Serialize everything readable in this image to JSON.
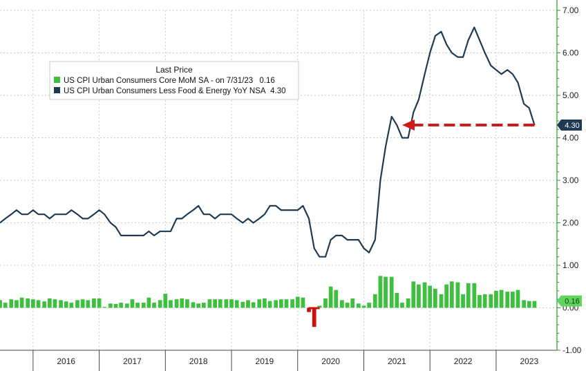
{
  "chart_data": {
    "type": "bar+line",
    "legend": {
      "title": "Last Price",
      "placement": "top-left",
      "entries": [
        {
          "label": "US CPI Urban Consumers Core MoM SA -  on 7/31/23",
          "value": "0.16",
          "color": "#3fbf3f"
        },
        {
          "label": "US CPI Urban Consumers Less Food & Energy YoY NSA",
          "value": "4.30",
          "color": "#1f3a52"
        }
      ]
    },
    "colors": {
      "bar_positive": "#3fbf3f",
      "bar_negative": "#cc1111",
      "line": "#1f3a52",
      "arrow": "#d11a1a",
      "axis": "#2d9b2d",
      "badge_line": "#1f3a52",
      "badge_bar": "#5fd45f"
    },
    "yaxis": {
      "position": "right",
      "ylim": [
        -1.0,
        7.0
      ],
      "ticks": [
        7.0,
        6.0,
        5.0,
        4.0,
        3.0,
        2.0,
        1.0,
        0.0,
        -1.0
      ],
      "tick_labels": [
        "7.00",
        "6.00",
        "5.00",
        "4.00",
        "3.00",
        "2.00",
        "1.00",
        "0.00",
        "-1.00"
      ]
    },
    "xaxis": {
      "start": 2015.5,
      "end": 2023.92,
      "years": [
        "2016",
        "2017",
        "2018",
        "2019",
        "2020",
        "2021",
        "2022",
        "2023"
      ]
    },
    "grid": true,
    "badges": [
      {
        "series": "yoy",
        "label": "4.30",
        "value": 4.3
      },
      {
        "series": "mom",
        "label": "0.16",
        "value": 0.16
      }
    ],
    "annotation": {
      "type": "dashed-arrow",
      "from_date": 2023.58,
      "to_date": 2021.58,
      "y": 4.3
    },
    "line_series": {
      "name": "US CPI Urban Consumers Less Food & Energy YoY NSA",
      "dates": [
        2015.5,
        2015.58,
        2015.67,
        2015.75,
        2015.83,
        2015.92,
        2016.0,
        2016.08,
        2016.17,
        2016.25,
        2016.33,
        2016.42,
        2016.5,
        2016.58,
        2016.67,
        2016.75,
        2016.83,
        2016.92,
        2017.0,
        2017.08,
        2017.17,
        2017.25,
        2017.33,
        2017.42,
        2017.5,
        2017.58,
        2017.67,
        2017.75,
        2017.83,
        2017.92,
        2018.0,
        2018.08,
        2018.17,
        2018.25,
        2018.33,
        2018.42,
        2018.5,
        2018.58,
        2018.67,
        2018.75,
        2018.83,
        2018.92,
        2019.0,
        2019.08,
        2019.17,
        2019.25,
        2019.33,
        2019.42,
        2019.5,
        2019.58,
        2019.67,
        2019.75,
        2019.83,
        2019.92,
        2020.0,
        2020.08,
        2020.17,
        2020.25,
        2020.33,
        2020.42,
        2020.5,
        2020.58,
        2020.67,
        2020.75,
        2020.83,
        2020.92,
        2021.0,
        2021.08,
        2021.17,
        2021.25,
        2021.33,
        2021.42,
        2021.5,
        2021.58,
        2021.67,
        2021.75,
        2021.83,
        2021.92,
        2022.0,
        2022.08,
        2022.17,
        2022.25,
        2022.33,
        2022.42,
        2022.5,
        2022.58,
        2022.67,
        2022.75,
        2022.83,
        2022.92,
        2023.0,
        2023.08,
        2023.17,
        2023.25,
        2023.33,
        2023.42,
        2023.5,
        2023.58
      ],
      "values": [
        2.0,
        2.1,
        2.2,
        2.3,
        2.2,
        2.2,
        2.3,
        2.2,
        2.2,
        2.1,
        2.2,
        2.2,
        2.2,
        2.3,
        2.2,
        2.1,
        2.1,
        2.2,
        2.3,
        2.2,
        2.0,
        1.9,
        1.7,
        1.7,
        1.7,
        1.7,
        1.7,
        1.8,
        1.7,
        1.8,
        1.8,
        1.8,
        2.1,
        2.1,
        2.2,
        2.3,
        2.4,
        2.2,
        2.2,
        2.1,
        2.2,
        2.2,
        2.2,
        2.1,
        2.0,
        2.1,
        2.0,
        2.1,
        2.2,
        2.4,
        2.4,
        2.3,
        2.3,
        2.3,
        2.3,
        2.4,
        2.1,
        1.4,
        1.2,
        1.2,
        1.6,
        1.7,
        1.7,
        1.6,
        1.6,
        1.6,
        1.4,
        1.3,
        1.6,
        3.0,
        3.8,
        4.5,
        4.3,
        4.0,
        4.0,
        4.6,
        4.9,
        5.5,
        6.0,
        6.4,
        6.5,
        6.2,
        6.0,
        5.9,
        5.9,
        6.3,
        6.6,
        6.3,
        6.0,
        5.7,
        5.6,
        5.5,
        5.6,
        5.5,
        5.3,
        4.8,
        4.7,
        4.3
      ]
    },
    "bar_series": {
      "name": "US CPI Urban Consumers Core MoM SA",
      "dates": [
        2015.5,
        2015.58,
        2015.67,
        2015.75,
        2015.83,
        2015.92,
        2016.0,
        2016.08,
        2016.17,
        2016.25,
        2016.33,
        2016.42,
        2016.5,
        2016.58,
        2016.67,
        2016.75,
        2016.83,
        2016.92,
        2017.0,
        2017.08,
        2017.17,
        2017.25,
        2017.33,
        2017.42,
        2017.5,
        2017.58,
        2017.67,
        2017.75,
        2017.83,
        2017.92,
        2018.0,
        2018.08,
        2018.17,
        2018.25,
        2018.33,
        2018.42,
        2018.5,
        2018.58,
        2018.67,
        2018.75,
        2018.83,
        2018.92,
        2019.0,
        2019.08,
        2019.17,
        2019.25,
        2019.33,
        2019.42,
        2019.5,
        2019.58,
        2019.67,
        2019.75,
        2019.83,
        2019.92,
        2020.0,
        2020.08,
        2020.17,
        2020.25,
        2020.33,
        2020.42,
        2020.5,
        2020.58,
        2020.67,
        2020.75,
        2020.83,
        2020.92,
        2021.0,
        2021.08,
        2021.17,
        2021.25,
        2021.33,
        2021.42,
        2021.5,
        2021.58,
        2021.67,
        2021.75,
        2021.83,
        2021.92,
        2022.0,
        2022.08,
        2022.17,
        2022.25,
        2022.33,
        2022.42,
        2022.5,
        2022.58,
        2022.67,
        2022.75,
        2022.83,
        2022.92,
        2023.0,
        2023.08,
        2023.17,
        2023.25,
        2023.33,
        2023.42,
        2023.5,
        2023.58
      ],
      "values": [
        0.18,
        0.12,
        0.2,
        0.18,
        0.24,
        0.22,
        0.2,
        0.18,
        0.15,
        0.22,
        0.2,
        0.18,
        0.15,
        0.12,
        0.18,
        0.2,
        0.18,
        0.22,
        0.22,
        0.02,
        0.1,
        0.09,
        0.12,
        0.1,
        0.2,
        0.12,
        0.12,
        0.24,
        0.12,
        0.18,
        0.33,
        0.18,
        0.2,
        0.22,
        0.2,
        0.13,
        0.1,
        0.12,
        0.2,
        0.2,
        0.2,
        0.2,
        0.2,
        0.18,
        0.14,
        0.18,
        0.13,
        0.2,
        0.22,
        0.16,
        0.18,
        0.2,
        0.2,
        0.2,
        0.26,
        0.24,
        -0.1,
        -0.45,
        0.05,
        0.22,
        0.5,
        0.42,
        0.18,
        0.12,
        0.22,
        0.1,
        0.05,
        0.12,
        0.32,
        0.75,
        0.73,
        0.73,
        0.35,
        0.12,
        0.22,
        0.62,
        0.55,
        0.6,
        0.52,
        0.45,
        0.32,
        0.55,
        0.62,
        0.6,
        0.32,
        0.58,
        0.58,
        0.3,
        0.32,
        0.32,
        0.4,
        0.42,
        0.38,
        0.38,
        0.42,
        0.18,
        0.16,
        0.16
      ]
    }
  }
}
